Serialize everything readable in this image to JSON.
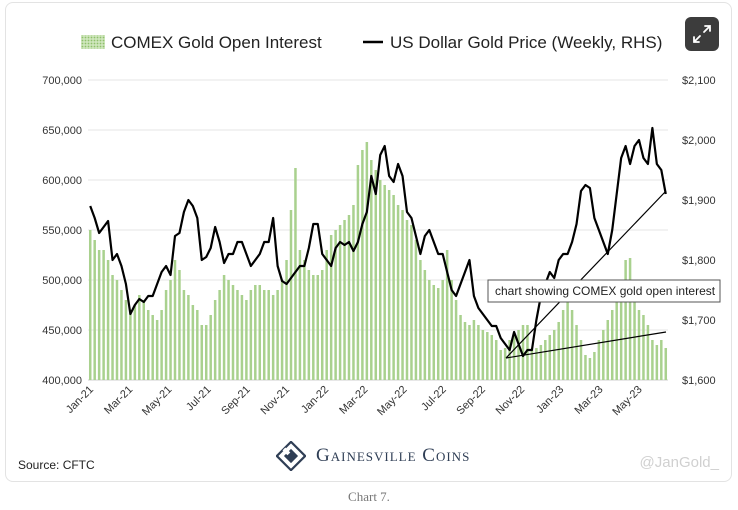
{
  "chart_data": {
    "type": "bar+line",
    "legend": {
      "bar_label": "COMEX Gold Open Interest",
      "line_label": "US Dollar Gold Price (Weekly, RHS)"
    },
    "x_tick_labels": [
      "Jan-21",
      "Mar-21",
      "May-21",
      "Jul-21",
      "Sep-21",
      "Nov-21",
      "Jan-22",
      "Mar-22",
      "May-22",
      "Jul-22",
      "Sep-22",
      "Nov-22",
      "Jan-23",
      "Mar-23",
      "May-23"
    ],
    "left_axis": {
      "ticks": [
        "400,000",
        "450,000",
        "500,000",
        "550,000",
        "600,000",
        "650,000",
        "700,000"
      ],
      "ylim": [
        400000,
        700000
      ]
    },
    "right_axis": {
      "ticks": [
        "$1,600",
        "$1,700",
        "$1,800",
        "$1,900",
        "$2,000",
        "$2,100"
      ],
      "ylim": [
        1600,
        2100
      ]
    },
    "series": [
      {
        "name": "COMEX Gold Open Interest",
        "type": "bar",
        "color": "#a9d18e",
        "values": [
          550000,
          540000,
          530000,
          530000,
          520000,
          505000,
          500000,
          490000,
          480000,
          470000,
          475000,
          485000,
          480000,
          470000,
          465000,
          460000,
          470000,
          490000,
          500000,
          520000,
          510000,
          490000,
          485000,
          475000,
          470000,
          455000,
          455000,
          465000,
          480000,
          490000,
          505000,
          500000,
          495000,
          490000,
          485000,
          480000,
          490000,
          495000,
          495000,
          490000,
          490000,
          485000,
          490000,
          500000,
          520000,
          570000,
          612000,
          530000,
          520000,
          510000,
          505000,
          505000,
          510000,
          530000,
          545000,
          550000,
          555000,
          560000,
          565000,
          575000,
          615000,
          630000,
          638000,
          620000,
          610000,
          600000,
          595000,
          590000,
          585000,
          575000,
          570000,
          560000,
          555000,
          540000,
          520000,
          510000,
          500000,
          495000,
          492000,
          500000,
          530000,
          500000,
          480000,
          465000,
          458000,
          455000,
          460000,
          455000,
          450000,
          448000,
          445000,
          440000,
          430000,
          432000,
          440000,
          445000,
          450000,
          455000,
          455000,
          430000,
          432000,
          435000,
          440000,
          445000,
          450000,
          458000,
          470000,
          480000,
          470000,
          455000,
          440000,
          425000,
          422000,
          428000,
          440000,
          450000,
          460000,
          470000,
          478000,
          490000,
          520000,
          522000,
          480000,
          470000,
          465000,
          455000,
          440000,
          435000,
          440000,
          432000
        ]
      },
      {
        "name": "US Dollar Gold Price (Weekly, RHS)",
        "type": "line",
        "color": "#000000",
        "values": [
          1890,
          1870,
          1845,
          1855,
          1865,
          1800,
          1810,
          1790,
          1760,
          1710,
          1725,
          1735,
          1730,
          1740,
          1740,
          1760,
          1780,
          1790,
          1775,
          1840,
          1845,
          1880,
          1900,
          1890,
          1870,
          1800,
          1805,
          1820,
          1855,
          1830,
          1795,
          1810,
          1810,
          1830,
          1830,
          1810,
          1790,
          1800,
          1810,
          1830,
          1830,
          1870,
          1790,
          1765,
          1760,
          1770,
          1780,
          1790,
          1790,
          1820,
          1860,
          1860,
          1810,
          1800,
          1790,
          1820,
          1830,
          1825,
          1830,
          1815,
          1830,
          1860,
          1880,
          1940,
          1910,
          1975,
          1990,
          1940,
          1930,
          1960,
          1940,
          1880,
          1870,
          1840,
          1810,
          1840,
          1850,
          1830,
          1810,
          1810,
          1780,
          1750,
          1740,
          1760,
          1780,
          1800,
          1740,
          1720,
          1710,
          1700,
          1690,
          1690,
          1670,
          1660,
          1650,
          1680,
          1660,
          1640,
          1650,
          1650,
          1700,
          1740,
          1760,
          1780,
          1770,
          1800,
          1810,
          1810,
          1830,
          1860,
          1915,
          1925,
          1920,
          1870,
          1850,
          1830,
          1810,
          1850,
          1910,
          1970,
          1990,
          1960,
          1990,
          2000,
          1970,
          1960,
          2020,
          1960,
          1950,
          1910
        ]
      }
    ]
  },
  "tooltip": "chart showing COMEX gold open interest",
  "source": "Source: CFTC",
  "logo_text": "Gainesville Coins",
  "watermark": "@JanGold_",
  "caption": "Chart 7.",
  "icons": {
    "expand": "expand-icon",
    "logo": "gainesville-coins-logo-icon"
  },
  "colors": {
    "bar": "#a9d18e",
    "line": "#000000",
    "logo": "#2f3e55",
    "button": "#3c3c3c"
  }
}
